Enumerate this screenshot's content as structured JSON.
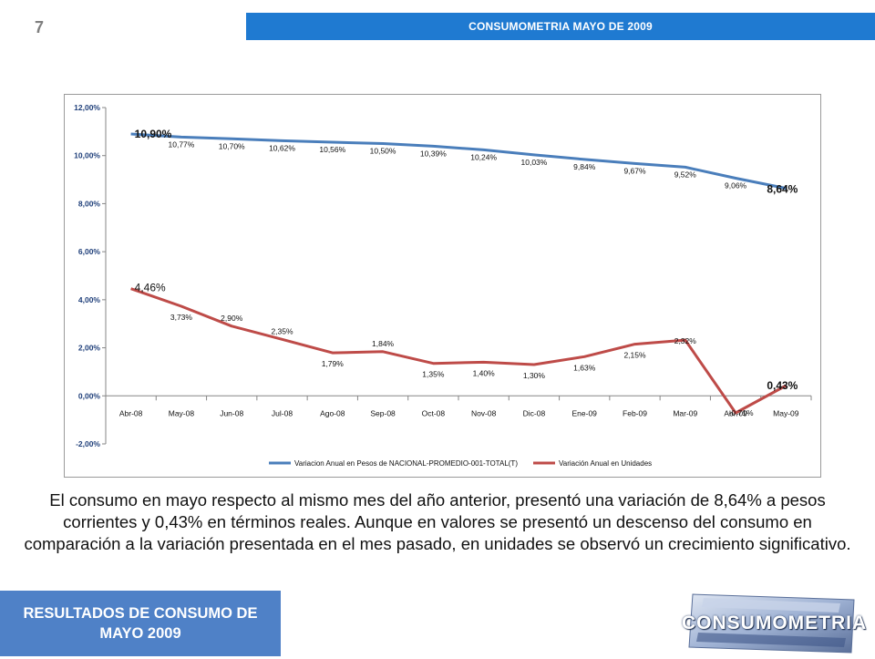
{
  "page_number": "7",
  "header": {
    "title": "CONSUMOMETRIA MAYO DE 2009"
  },
  "body_text": "El consumo en mayo respecto al mismo mes del año anterior, presentó una variación de 8,64% a pesos corrientes y 0,43% en términos reales. Aunque en valores se presentó un descenso del consumo en comparación a la variación presentada en el mes pasado, en unidades se observó un crecimiento significativo.",
  "footer": {
    "title": "RESULTADOS DE CONSUMO DE MAYO 2009"
  },
  "logo": {
    "text": "CONSUMOMETRIA",
    "name": "consumometria-logo"
  },
  "chart_data": {
    "type": "line",
    "categories": [
      "Abr-08",
      "May-08",
      "Jun-08",
      "Jul-08",
      "Ago-08",
      "Sep-08",
      "Oct-08",
      "Nov-08",
      "Dic-08",
      "Ene-09",
      "Feb-09",
      "Mar-09",
      "Abr-09",
      "May-09"
    ],
    "yticks": [
      "-2,00%",
      "0,00%",
      "2,00%",
      "4,00%",
      "6,00%",
      "8,00%",
      "10,00%",
      "12,00%"
    ],
    "ylim": [
      -2,
      12
    ],
    "grid": false,
    "legend_position": "bottom",
    "series": [
      {
        "name": "Variacion Anual en Pesos de NACIONAL-PROMEDIO-001-TOTAL(T)",
        "color": "#4a7ebb",
        "values": [
          10.9,
          10.77,
          10.7,
          10.62,
          10.56,
          10.5,
          10.39,
          10.24,
          10.03,
          9.84,
          9.67,
          9.52,
          9.06,
          8.64
        ],
        "labels": [
          "10,90%",
          "10,77%",
          "10,70%",
          "10,62%",
          "10,56%",
          "10,50%",
          "10,39%",
          "10,24%",
          "10,03%",
          "9,84%",
          "9,67%",
          "9,52%",
          "9,06%",
          "8,64%"
        ]
      },
      {
        "name": "Variación Anual en Unidades",
        "color": "#be4b48",
        "values": [
          4.46,
          3.73,
          2.9,
          2.35,
          1.79,
          1.84,
          1.35,
          1.4,
          1.3,
          1.63,
          2.15,
          2.32,
          -0.71,
          0.43
        ],
        "labels": [
          "4,46%",
          "3,73%",
          "2,90%",
          "2,35%",
          "1,79%",
          "1,84%",
          "1,35%",
          "1,40%",
          "1,30%",
          "1,63%",
          "2,15%",
          "2,32%",
          "-0,71%",
          "0,43%"
        ]
      }
    ]
  }
}
